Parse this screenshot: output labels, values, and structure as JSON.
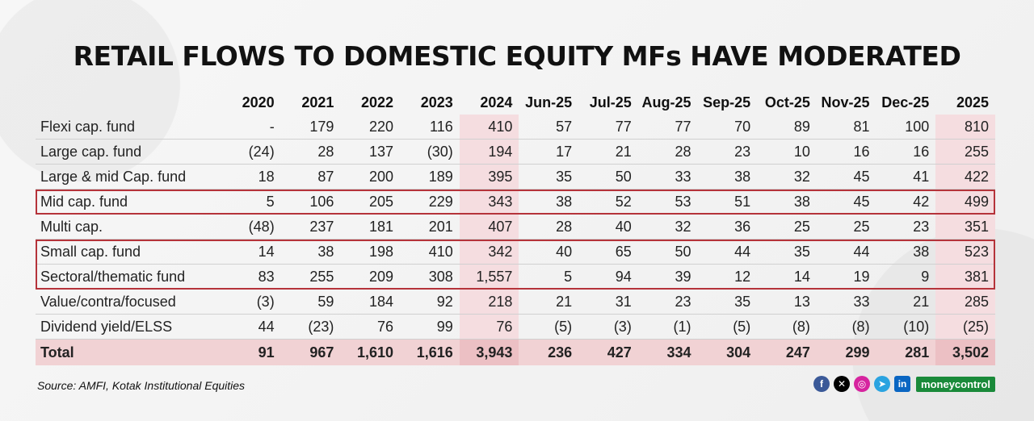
{
  "title": "RETAIL FLOWS TO DOMESTIC EQUITY MFs HAVE MODERATED",
  "source": "Source: AMFI, Kotak Institutional Equities",
  "brand": "moneycontrol",
  "colors": {
    "highlight": "#f5dde0",
    "box": "#b5333a",
    "total_bg": "#f1d2d4"
  },
  "social_icons": [
    "facebook-icon",
    "x-icon",
    "instagram-icon",
    "telegram-icon",
    "linkedin-icon"
  ],
  "chart_data": {
    "type": "table",
    "title": "RETAIL FLOWS TO DOMESTIC EQUITY MFs HAVE MODERATED",
    "columns": [
      "2020",
      "2021",
      "2022",
      "2023",
      "2024",
      "Jun-25",
      "Jul-25",
      "Aug-25",
      "Sep-25",
      "Oct-25",
      "Nov-25",
      "Dec-25",
      "2025"
    ],
    "highlighted_columns": [
      "2024",
      "2025"
    ],
    "boxed_rows": [
      "Mid cap. fund",
      "Small cap. fund",
      "Sectoral/thematic fund"
    ],
    "rows": [
      {
        "label": "Flexi cap. fund",
        "values": [
          "-",
          "179",
          "220",
          "116",
          "410",
          "57",
          "77",
          "77",
          "70",
          "89",
          "81",
          "100",
          "810"
        ]
      },
      {
        "label": "Large cap. fund",
        "values": [
          "(24)",
          "28",
          "137",
          "(30)",
          "194",
          "17",
          "21",
          "28",
          "23",
          "10",
          "16",
          "16",
          "255"
        ]
      },
      {
        "label": "Large & mid Cap. fund",
        "values": [
          "18",
          "87",
          "200",
          "189",
          "395",
          "35",
          "50",
          "33",
          "38",
          "32",
          "45",
          "41",
          "422"
        ]
      },
      {
        "label": "Mid cap. fund",
        "values": [
          "5",
          "106",
          "205",
          "229",
          "343",
          "38",
          "52",
          "53",
          "51",
          "38",
          "45",
          "42",
          "499"
        ]
      },
      {
        "label": "Multi cap.",
        "values": [
          "(48)",
          "237",
          "181",
          "201",
          "407",
          "28",
          "40",
          "32",
          "36",
          "25",
          "25",
          "23",
          "351"
        ]
      },
      {
        "label": "Small cap. fund",
        "values": [
          "14",
          "38",
          "198",
          "410",
          "342",
          "40",
          "65",
          "50",
          "44",
          "35",
          "44",
          "38",
          "523"
        ]
      },
      {
        "label": "Sectoral/thematic fund",
        "values": [
          "83",
          "255",
          "209",
          "308",
          "1,557",
          "5",
          "94",
          "39",
          "12",
          "14",
          "19",
          "9",
          "381"
        ]
      },
      {
        "label": "Value/contra/focused",
        "values": [
          "(3)",
          "59",
          "184",
          "92",
          "218",
          "21",
          "31",
          "23",
          "35",
          "13",
          "33",
          "21",
          "285"
        ]
      },
      {
        "label": "Dividend yield/ELSS",
        "values": [
          "44",
          "(23)",
          "76",
          "99",
          "76",
          "(5)",
          "(3)",
          "(1)",
          "(5)",
          "(8)",
          "(8)",
          "(10)",
          "(25)"
        ]
      }
    ],
    "total": {
      "label": "Total",
      "values": [
        "91",
        "967",
        "1,610",
        "1,616",
        "3,943",
        "236",
        "427",
        "334",
        "304",
        "247",
        "299",
        "281",
        "3,502"
      ]
    }
  }
}
